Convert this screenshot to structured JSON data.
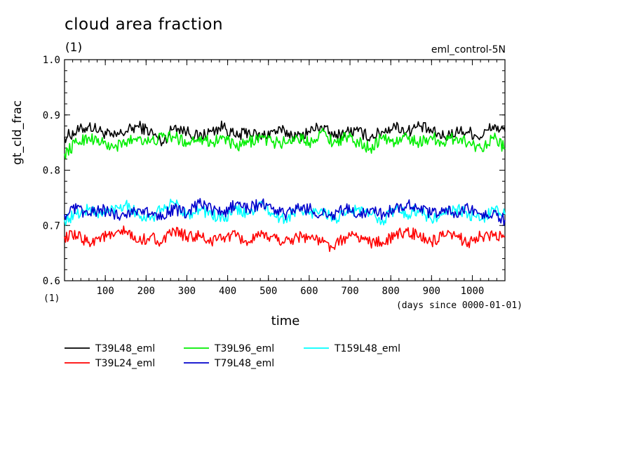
{
  "chart_data": {
    "type": "line",
    "title": "cloud area fraction",
    "subtitle": "(1)",
    "dataset_label": "eml_control-5N",
    "ylabel": "gt_cld_frac",
    "yunit": "(1)",
    "xlabel": "time",
    "xunit": "(days since 0000-01-01)",
    "xlim": [
      0,
      1080
    ],
    "ylim": [
      0.6,
      1.0
    ],
    "yticks": [
      0.6,
      0.7,
      0.8,
      0.9,
      1.0
    ],
    "ytick_labels": [
      "0.6",
      "0.7",
      "0.8",
      "0.9",
      "1.0"
    ],
    "xticks": [
      100,
      200,
      300,
      400,
      500,
      600,
      700,
      800,
      900,
      1000
    ],
    "xtick_labels": [
      "100",
      "200",
      "300",
      "400",
      "500",
      "600",
      "700",
      "800",
      "900",
      "1000"
    ],
    "grid": false,
    "legend_position": "below",
    "series": [
      {
        "name": "T39L48_eml",
        "color": "#000000",
        "x": [
          0,
          30,
          60,
          90,
          120,
          150,
          180,
          210,
          240,
          270,
          300,
          330,
          360,
          390,
          420,
          450,
          480,
          510,
          540,
          570,
          600,
          630,
          660,
          690,
          720,
          750,
          780,
          810,
          840,
          870,
          900,
          930,
          960,
          990,
          1020,
          1050,
          1080
        ],
        "values": [
          0.86,
          0.87,
          0.88,
          0.87,
          0.86,
          0.87,
          0.88,
          0.87,
          0.85,
          0.88,
          0.87,
          0.86,
          0.87,
          0.88,
          0.86,
          0.87,
          0.86,
          0.87,
          0.87,
          0.86,
          0.87,
          0.88,
          0.86,
          0.87,
          0.87,
          0.86,
          0.87,
          0.88,
          0.87,
          0.88,
          0.87,
          0.86,
          0.87,
          0.87,
          0.86,
          0.88,
          0.87
        ]
      },
      {
        "name": "T39L96_eml",
        "color": "#00ee00",
        "x": [
          0,
          30,
          60,
          90,
          120,
          150,
          180,
          210,
          240,
          270,
          300,
          330,
          360,
          390,
          420,
          450,
          480,
          510,
          540,
          570,
          600,
          630,
          660,
          690,
          720,
          750,
          780,
          810,
          840,
          870,
          900,
          930,
          960,
          990,
          1020,
          1050,
          1080
        ],
        "values": [
          0.83,
          0.85,
          0.86,
          0.85,
          0.84,
          0.85,
          0.86,
          0.85,
          0.86,
          0.86,
          0.85,
          0.86,
          0.85,
          0.86,
          0.84,
          0.85,
          0.86,
          0.85,
          0.85,
          0.86,
          0.85,
          0.87,
          0.85,
          0.86,
          0.85,
          0.84,
          0.86,
          0.85,
          0.86,
          0.85,
          0.86,
          0.85,
          0.86,
          0.85,
          0.84,
          0.86,
          0.84
        ]
      },
      {
        "name": "T159L48_eml",
        "color": "#00ffff",
        "x": [
          0,
          30,
          60,
          90,
          120,
          150,
          180,
          210,
          240,
          270,
          300,
          330,
          360,
          390,
          420,
          450,
          480,
          510,
          540,
          570,
          600,
          630,
          660,
          690,
          720,
          750,
          780,
          810,
          840,
          870,
          900,
          930,
          960,
          990,
          1020,
          1050,
          1080
        ],
        "values": [
          0.71,
          0.72,
          0.73,
          0.72,
          0.73,
          0.74,
          0.72,
          0.71,
          0.73,
          0.74,
          0.72,
          0.73,
          0.72,
          0.71,
          0.73,
          0.72,
          0.74,
          0.72,
          0.71,
          0.73,
          0.72,
          0.73,
          0.71,
          0.72,
          0.73,
          0.72,
          0.71,
          0.73,
          0.72,
          0.73,
          0.71,
          0.72,
          0.73,
          0.72,
          0.71,
          0.73,
          0.72
        ]
      },
      {
        "name": "T39L24_eml",
        "color": "#ff0000",
        "x": [
          0,
          30,
          60,
          90,
          120,
          150,
          180,
          210,
          240,
          270,
          300,
          330,
          360,
          390,
          420,
          450,
          480,
          510,
          540,
          570,
          600,
          630,
          660,
          690,
          720,
          750,
          780,
          810,
          840,
          870,
          900,
          930,
          960,
          990,
          1020,
          1050,
          1080
        ],
        "values": [
          0.68,
          0.68,
          0.67,
          0.68,
          0.68,
          0.69,
          0.67,
          0.68,
          0.67,
          0.69,
          0.68,
          0.68,
          0.67,
          0.68,
          0.68,
          0.67,
          0.68,
          0.68,
          0.67,
          0.68,
          0.68,
          0.67,
          0.66,
          0.68,
          0.68,
          0.67,
          0.67,
          0.68,
          0.69,
          0.68,
          0.67,
          0.68,
          0.68,
          0.67,
          0.68,
          0.68,
          0.68
        ]
      },
      {
        "name": "T79L48_eml",
        "color": "#0000cc",
        "x": [
          0,
          30,
          60,
          90,
          120,
          150,
          180,
          210,
          240,
          270,
          300,
          330,
          360,
          390,
          420,
          450,
          480,
          510,
          540,
          570,
          600,
          630,
          660,
          690,
          720,
          750,
          780,
          810,
          840,
          870,
          900,
          930,
          960,
          990,
          1020,
          1050,
          1080
        ],
        "values": [
          0.72,
          0.73,
          0.72,
          0.73,
          0.72,
          0.72,
          0.73,
          0.72,
          0.72,
          0.73,
          0.72,
          0.74,
          0.73,
          0.72,
          0.74,
          0.73,
          0.74,
          0.73,
          0.72,
          0.73,
          0.73,
          0.72,
          0.72,
          0.73,
          0.72,
          0.73,
          0.72,
          0.73,
          0.74,
          0.73,
          0.72,
          0.73,
          0.72,
          0.73,
          0.72,
          0.72,
          0.71
        ]
      }
    ]
  }
}
